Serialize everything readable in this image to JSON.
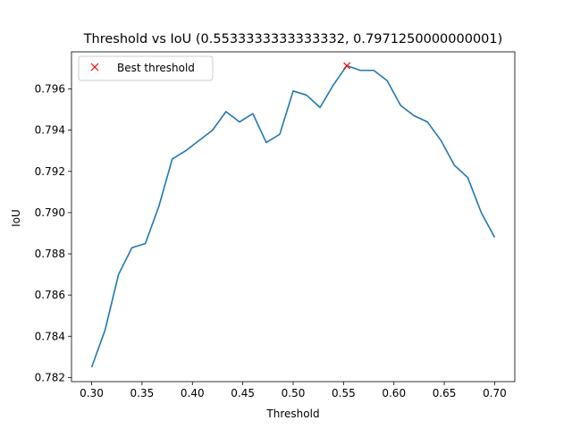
{
  "chart_data": {
    "type": "line",
    "title": "Threshold vs IoU (0.5533333333333332, 0.7971250000000001)",
    "xlabel": "Threshold",
    "ylabel": "IoU",
    "xlim": [
      0.28,
      0.72
    ],
    "ylim": [
      0.7818,
      0.7978
    ],
    "xticks": [
      "0.30",
      "0.35",
      "0.40",
      "0.45",
      "0.50",
      "0.55",
      "0.60",
      "0.65",
      "0.70"
    ],
    "yticks": [
      "0.782",
      "0.784",
      "0.786",
      "0.788",
      "0.790",
      "0.792",
      "0.794",
      "0.796"
    ],
    "grid": false,
    "legend_position": "upper-left",
    "series": [
      {
        "type": "line",
        "color": "#1f77b4",
        "x": [
          0.3,
          0.3133,
          0.3267,
          0.34,
          0.3533,
          0.3667,
          0.38,
          0.3933,
          0.4067,
          0.42,
          0.4333,
          0.4467,
          0.46,
          0.4733,
          0.4867,
          0.5,
          0.5133,
          0.5267,
          0.54,
          0.5533,
          0.5667,
          0.58,
          0.5933,
          0.6067,
          0.62,
          0.6333,
          0.6467,
          0.66,
          0.6733,
          0.6867,
          0.7
        ],
        "y": [
          0.7825,
          0.7843,
          0.787,
          0.7883,
          0.7885,
          0.7903,
          0.7926,
          0.793,
          0.7935,
          0.794,
          0.7949,
          0.7944,
          0.7948,
          0.7934,
          0.7938,
          0.7959,
          0.7957,
          0.7951,
          0.7962,
          0.79713,
          0.7969,
          0.7969,
          0.7964,
          0.7952,
          0.7947,
          0.7944,
          0.7935,
          0.7923,
          0.7917,
          0.79,
          0.7888
        ]
      },
      {
        "type": "marker",
        "name": "Best threshold",
        "color": "#ff0000",
        "marker": "x",
        "x": [
          0.5533333333333332
        ],
        "y": [
          0.7971250000000001
        ]
      }
    ]
  }
}
